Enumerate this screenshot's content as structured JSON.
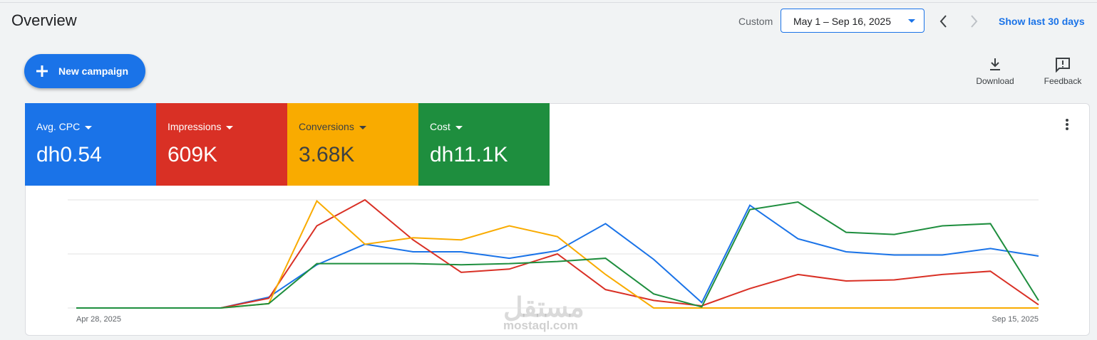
{
  "header": {
    "title": "Overview",
    "range_label": "Custom",
    "date_range": "May 1 – Sep 16, 2025",
    "show_last": "Show last 30 days"
  },
  "toolbar": {
    "new_campaign": "New campaign",
    "download": "Download",
    "feedback": "Feedback"
  },
  "watermark": {
    "arabic": "مستقل",
    "latin": "mostaql.com"
  },
  "chart_data": {
    "type": "line",
    "categories": [
      "Apr 28, 2025",
      null,
      null,
      null,
      null,
      null,
      null,
      null,
      null,
      null,
      null,
      null,
      null,
      null,
      null,
      null,
      null,
      null,
      null,
      null,
      "Sep 15, 2025"
    ],
    "ylim": [
      0,
      100
    ],
    "yticks": [
      0,
      50,
      100
    ],
    "grid": true,
    "series": [
      {
        "name": "Avg. CPC",
        "summary": "dh0.54",
        "color": "#1a73e8",
        "values": [
          0,
          0,
          0,
          0,
          10,
          40,
          59,
          52,
          52,
          46,
          53,
          78,
          45,
          5,
          95,
          64,
          52,
          49,
          49,
          55,
          48
        ]
      },
      {
        "name": "Impressions",
        "summary": "609K",
        "color": "#d93025",
        "values": [
          0,
          0,
          0,
          0,
          9,
          76,
          100,
          63,
          33,
          36,
          50,
          17,
          7,
          2,
          18,
          31,
          25,
          26,
          31,
          34,
          3
        ]
      },
      {
        "name": "Conversions",
        "summary": "3.68K",
        "color": "#f9ab00",
        "values": [
          0,
          0,
          0,
          0,
          4,
          99,
          59,
          65,
          63,
          76,
          66,
          31,
          0,
          0,
          0,
          0,
          0,
          0,
          0,
          0,
          0
        ]
      },
      {
        "name": "Cost",
        "summary": "dh11.1K",
        "color": "#1e8e3e",
        "values": [
          0,
          0,
          0,
          0,
          4,
          41,
          41,
          41,
          40,
          41,
          43,
          46,
          13,
          1,
          91,
          98,
          70,
          68,
          76,
          78,
          7
        ]
      }
    ]
  }
}
